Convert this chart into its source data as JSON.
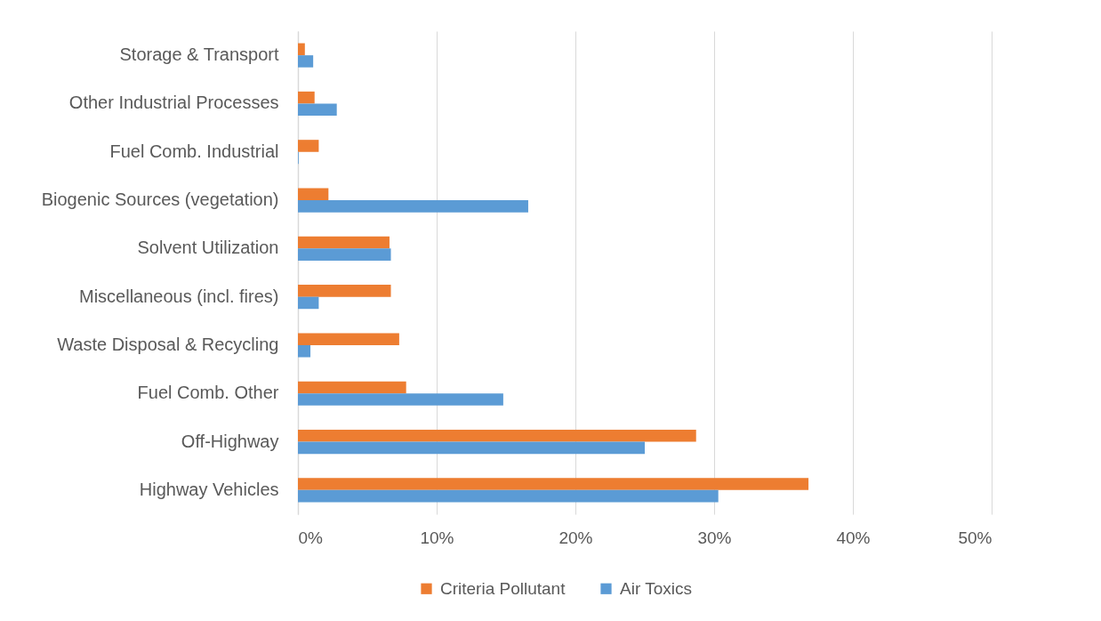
{
  "chart_data": {
    "type": "bar",
    "orientation": "horizontal",
    "categories": [
      "Storage & Transport",
      "Other Industrial Processes",
      "Fuel Comb. Industrial",
      "Biogenic Sources (vegetation)",
      "Solvent Utilization",
      "Miscellaneous (incl. fires)",
      "Waste Disposal & Recycling",
      "Fuel Comb. Other",
      "Off-Highway",
      "Highway Vehicles"
    ],
    "series": [
      {
        "name": "Criteria Pollutant",
        "color": "#ed7d31",
        "values": [
          0.5,
          1.2,
          1.5,
          2.2,
          6.6,
          6.7,
          7.3,
          7.8,
          28.7,
          36.8
        ]
      },
      {
        "name": "Air Toxics",
        "color": "#5b9bd5",
        "values": [
          1.1,
          2.8,
          0.05,
          16.6,
          6.7,
          1.5,
          0.9,
          14.8,
          25.0,
          30.3
        ]
      }
    ],
    "xlim": [
      0,
      50
    ],
    "xticks": [
      {
        "value": 0,
        "label": "0%"
      },
      {
        "value": 10,
        "label": "10%"
      },
      {
        "value": 20,
        "label": "20%"
      },
      {
        "value": 30,
        "label": "30%"
      },
      {
        "value": 40,
        "label": "40%"
      },
      {
        "value": 50,
        "label": "50%"
      }
    ],
    "grid": "x",
    "legend": "bottom"
  }
}
